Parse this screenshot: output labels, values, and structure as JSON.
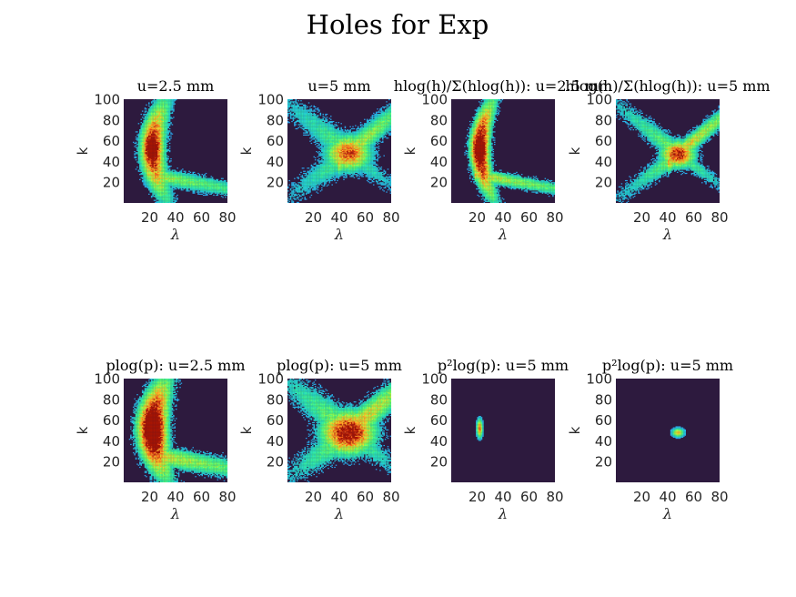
{
  "figure": {
    "title": "Holes for Exp"
  },
  "chart_data": [
    {
      "type": "heatmap",
      "title": "u=2.5 mm",
      "xlabel": "λ",
      "ylabel": "k",
      "xticks": [
        20,
        40,
        60,
        80
      ],
      "yticks": [
        20,
        40,
        60,
        80,
        100
      ],
      "xlim": [
        0,
        80
      ],
      "ylim": [
        0,
        100
      ],
      "pattern": "crescent",
      "ridge_lambda_at_k50": 22,
      "peak": [
        22,
        52
      ],
      "peak_level": 0.72,
      "colormap": "turbo"
    },
    {
      "type": "heatmap",
      "title": "u=5 mm",
      "xlabel": "λ",
      "ylabel": "k",
      "xticks": [
        20,
        40,
        60,
        80
      ],
      "yticks": [
        20,
        40,
        60,
        80,
        100
      ],
      "xlim": [
        0,
        80
      ],
      "ylim": [
        0,
        100
      ],
      "pattern": "x-shape",
      "peak": [
        47,
        48
      ],
      "peak_level": 0.62,
      "colormap": "turbo"
    },
    {
      "type": "heatmap",
      "title": "hlog(h)/Σ(hlog(h)): u=2.5 mm",
      "xlabel": "λ",
      "ylabel": "k",
      "xticks": [
        20,
        40,
        60,
        80
      ],
      "yticks": [
        20,
        40,
        60,
        80,
        100
      ],
      "xlim": [
        0,
        80
      ],
      "ylim": [
        0,
        100
      ],
      "pattern": "crescent-narrow",
      "ridge_lambda_at_k50": 22,
      "peak": [
        22,
        52
      ],
      "peak_level": 0.85,
      "colormap": "turbo"
    },
    {
      "type": "heatmap",
      "title": "hlog(h)/Σ(hlog(h)): u=5 mm",
      "xlabel": "λ",
      "ylabel": "k",
      "xticks": [
        20,
        40,
        60,
        80
      ],
      "yticks": [
        20,
        40,
        60,
        80,
        100
      ],
      "xlim": [
        0,
        80
      ],
      "ylim": [
        0,
        100
      ],
      "pattern": "x-shape-narrow",
      "peak": [
        48,
        47
      ],
      "peak_level": 0.72,
      "colormap": "turbo"
    },
    {
      "type": "heatmap",
      "title": "plog(p): u=2.5 mm",
      "xlabel": "λ",
      "ylabel": "k",
      "xticks": [
        20,
        40,
        60,
        80
      ],
      "yticks": [
        20,
        40,
        60,
        80,
        100
      ],
      "xlim": [
        0,
        80
      ],
      "ylim": [
        0,
        100
      ],
      "pattern": "crescent-broad",
      "ridge_lambda_at_k50": 22,
      "peak": [
        23,
        52
      ],
      "peak_level": 0.9,
      "colormap": "turbo"
    },
    {
      "type": "heatmap",
      "title": "plog(p): u=5 mm",
      "xlabel": "λ",
      "ylabel": "k",
      "xticks": [
        20,
        40,
        60,
        80
      ],
      "yticks": [
        20,
        40,
        60,
        80,
        100
      ],
      "xlim": [
        0,
        80
      ],
      "ylim": [
        0,
        100
      ],
      "pattern": "x-shape-broad",
      "peak": [
        47,
        48
      ],
      "peak_level": 0.82,
      "colormap": "turbo"
    },
    {
      "type": "heatmap",
      "title": "p²log(p): u=5 mm",
      "xlabel": "λ",
      "ylabel": "k",
      "xticks": [
        20,
        40,
        60,
        80
      ],
      "yticks": [
        20,
        40,
        60,
        80,
        100
      ],
      "xlim": [
        0,
        80
      ],
      "ylim": [
        0,
        100
      ],
      "pattern": "spot",
      "peak": [
        22,
        52
      ],
      "spread": [
        1.4,
        5.5
      ],
      "peak_level": 0.6,
      "colormap": "turbo"
    },
    {
      "type": "heatmap",
      "title": "p²log(p): u=5 mm",
      "xlabel": "λ",
      "ylabel": "k",
      "xticks": [
        20,
        40,
        60,
        80
      ],
      "yticks": [
        20,
        40,
        60,
        80,
        100
      ],
      "xlim": [
        0,
        80
      ],
      "ylim": [
        0,
        100
      ],
      "pattern": "spot",
      "peak": [
        48,
        48
      ],
      "spread": [
        2.8,
        2.6
      ],
      "peak_level": 0.45,
      "colormap": "turbo"
    }
  ]
}
